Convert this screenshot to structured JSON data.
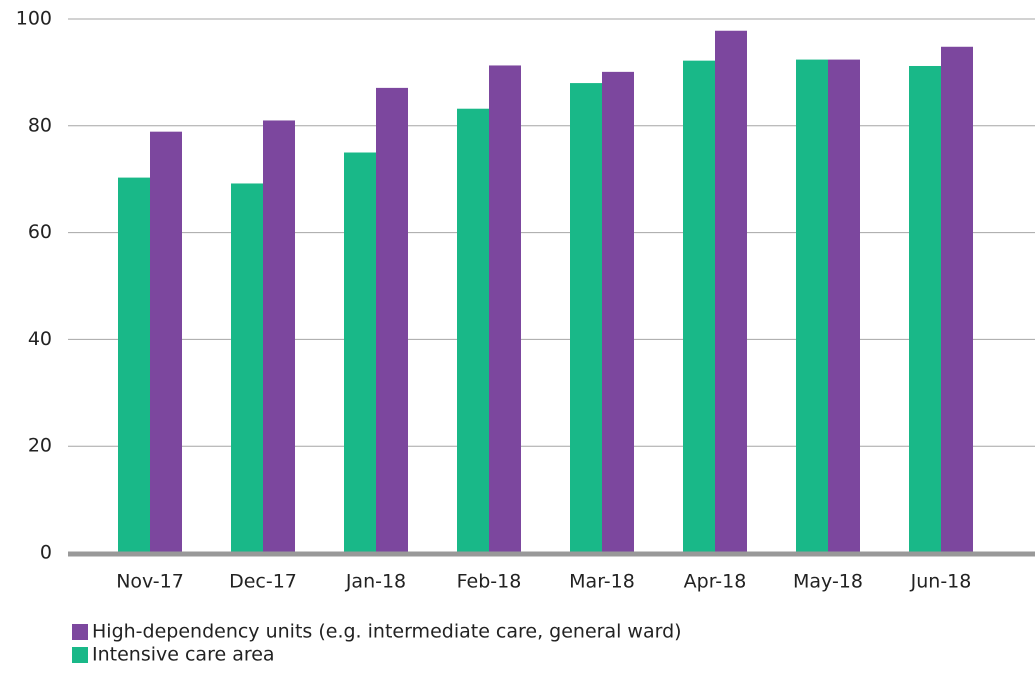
{
  "chart_data": {
    "type": "bar",
    "categories": [
      "Nov-17",
      "Dec-17",
      "Jan-18",
      "Feb-18",
      "Mar-18",
      "Apr-18",
      "May-18",
      "Jun-18"
    ],
    "series": [
      {
        "name": "Intensive care area",
        "color": "#19b888",
        "values": [
          70.3,
          69.2,
          75,
          83.2,
          88,
          92.2,
          92.4,
          91.2
        ]
      },
      {
        "name": "High-dependency units (e.g. intermediate care, general ward)",
        "color": "#7c479e",
        "values": [
          78.9,
          81,
          87.1,
          91.3,
          90.1,
          97.8,
          92.4,
          94.8
        ]
      }
    ],
    "ylim": [
      0,
      100
    ],
    "yticks": [
      0,
      20,
      40,
      60,
      80,
      100
    ],
    "grid": true
  }
}
